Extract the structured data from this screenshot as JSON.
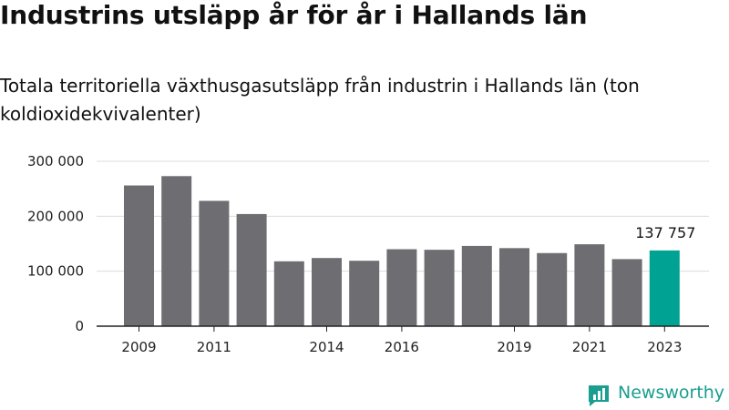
{
  "header": {
    "title": "Industrins utsläpp år för år i Hallands län",
    "subtitle": "Totala territoriella växthusgasutsläpp från industrin i Hallands län (ton koldioxidekvivalenter)"
  },
  "brand": {
    "name": "Newsworthy",
    "icon": "newsworthy-logo-icon",
    "color": "#1a9e8f"
  },
  "chart_data": {
    "type": "bar",
    "title": "Industrins utsläpp år för år i Hallands län",
    "subtitle": "Totala territoriella växthusgasutsläpp från industrin i Hallands län (ton koldioxidekvivalenter)",
    "xlabel": "",
    "ylabel": "",
    "categories": [
      "2009",
      "2010",
      "2011",
      "2012",
      "2013",
      "2014",
      "2015",
      "2016",
      "2017",
      "2018",
      "2019",
      "2020",
      "2021",
      "2022",
      "2023"
    ],
    "values": [
      256000,
      273000,
      228000,
      204000,
      118000,
      124000,
      119000,
      140000,
      139000,
      146000,
      142000,
      133000,
      149000,
      122000,
      137757
    ],
    "x_tick_labels": [
      "2009",
      "2011",
      "2014",
      "2016",
      "2019",
      "2021",
      "2023"
    ],
    "y_ticks": [
      0,
      100000,
      200000,
      300000
    ],
    "y_tick_labels": [
      "0",
      "100 000",
      "200 000",
      "300 000"
    ],
    "ylim": [
      0,
      300000
    ],
    "grid": true,
    "legend": "none",
    "highlight": {
      "category": "2023",
      "label": "137 757"
    },
    "colors": {
      "bar": "#6e6d72",
      "highlight": "#00a393",
      "grid": "#dcdcdc",
      "axis": "#222222"
    }
  }
}
